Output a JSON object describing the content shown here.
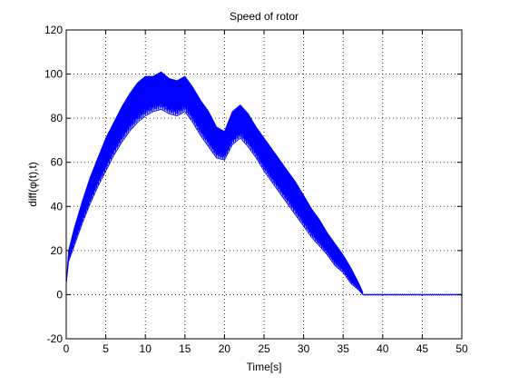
{
  "chart_data": {
    "type": "line",
    "title": "Speed of rotor",
    "xlabel": "Time[s]",
    "ylabel": "diff(φ(t),t)",
    "xlim": [
      0,
      50
    ],
    "ylim": [
      -20,
      120
    ],
    "x_ticks": [
      0,
      5,
      10,
      15,
      20,
      25,
      30,
      35,
      40,
      45,
      50
    ],
    "y_ticks": [
      -20,
      0,
      20,
      40,
      60,
      80,
      100,
      120
    ],
    "x_tick_labels": [
      "0",
      "5",
      "10",
      "15",
      "20",
      "25",
      "30",
      "35",
      "40",
      "45",
      "50"
    ],
    "y_tick_labels": [
      "-20",
      "0",
      "20",
      "40",
      "60",
      "80",
      "100",
      "120"
    ],
    "grid": true,
    "grid_style": "dotted",
    "line_color": "#0000ff",
    "series": [
      {
        "upper_envelope": {
          "x": [
            0,
            0.3,
            1,
            2,
            3,
            4,
            5,
            6,
            7,
            8,
            9,
            10,
            11,
            12,
            13,
            14,
            15,
            16,
            17,
            18,
            19,
            20,
            21,
            22,
            23,
            24,
            25,
            26,
            27,
            28,
            29,
            30,
            31,
            32,
            33,
            34,
            35,
            36,
            37,
            37.5
          ],
          "y": [
            5,
            20,
            30,
            42,
            53,
            62,
            71,
            78,
            85,
            91,
            96,
            99,
            99,
            101,
            98,
            97,
            99,
            94,
            88,
            83,
            76,
            74,
            83,
            86,
            82,
            76,
            71,
            66,
            61,
            56,
            51,
            45,
            39,
            34,
            28,
            23,
            18,
            12,
            5,
            1
          ]
        },
        "lower_envelope": {
          "x": [
            0,
            0.3,
            1,
            2,
            3,
            4,
            5,
            6,
            7,
            8,
            9,
            10,
            11,
            12,
            13,
            14,
            15,
            16,
            17,
            18,
            19,
            20,
            21,
            22,
            23,
            24,
            25,
            26,
            27,
            28,
            29,
            30,
            31,
            32,
            33,
            34,
            35,
            36,
            37,
            37.5
          ],
          "y": [
            5,
            15,
            22,
            32,
            41,
            49,
            56,
            63,
            69,
            74,
            78,
            81,
            83,
            84,
            82,
            81,
            83,
            78,
            72,
            67,
            62,
            61,
            68,
            71,
            67,
            62,
            56,
            51,
            46,
            41,
            36,
            31,
            26,
            22,
            18,
            13,
            10,
            5,
            2,
            0
          ]
        },
        "steady_state": {
          "x": [
            37.5,
            50
          ],
          "y": [
            0,
            0
          ]
        }
      }
    ]
  }
}
